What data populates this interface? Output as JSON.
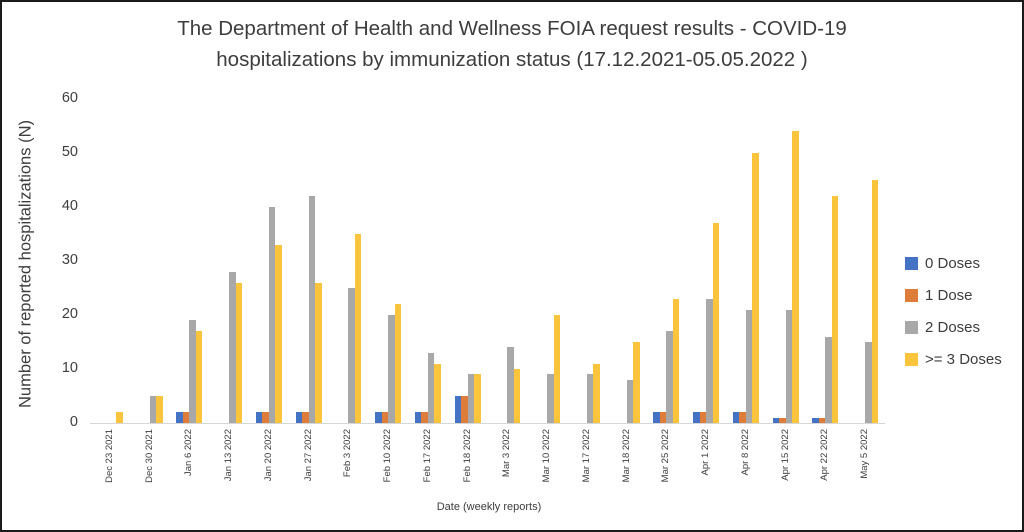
{
  "title": {
    "line1": "The Department of Health and Wellness FOIA request results - COVID-19",
    "line2": "hospitalizations by immunization status (17.12.2021-05.05.2022 )"
  },
  "y_axis": {
    "title": "Number of reported hospitalizations (N)",
    "ticks": [
      0,
      10,
      20,
      30,
      40,
      50,
      60
    ],
    "max": 60
  },
  "x_axis": {
    "title": "Date (weekly reports)"
  },
  "legend": [
    {
      "label": "0 Doses",
      "color": "#4472C4"
    },
    {
      "label": "1 Dose",
      "color": "#DE7C3A"
    },
    {
      "label": "2 Doses",
      "color": "#A8A8A8"
    },
    {
      "label": ">= 3 Doses",
      "color": "#FAC43D"
    }
  ],
  "chart_data": {
    "type": "bar",
    "title": "The Department of Health and Wellness FOIA request results - COVID-19 hospitalizations by immunization status (17.12.2021-05.05.2022 )",
    "xlabel": "Date (weekly reports)",
    "ylabel": "Number of reported hospitalizations (N)",
    "ylim": [
      0,
      60
    ],
    "grid": false,
    "legend_position": "right",
    "categories": [
      "Dec 23 2021",
      "Dec 30 2021",
      "Jan 6 2022",
      "Jan 13 2022",
      "Jan 20 2022",
      "Jan 27 2022",
      "Feb 3 2022",
      "Feb 10 2022",
      "Feb 17 2022",
      "Feb 18 2022",
      "Mar 3 2022",
      "Mar 10 2022",
      "Mar 17 2022",
      "Mar 18 2022",
      "Mar 25 2022",
      "Apr 1 2022",
      "Apr 8 2022",
      "Apr 15 2022",
      "Apr 22 2022",
      "May 5 2022"
    ],
    "series": [
      {
        "name": "0 Doses",
        "color": "#4472C4",
        "values": [
          0,
          0,
          2,
          0,
          2,
          2,
          0,
          2,
          2,
          5,
          0,
          0,
          0,
          0,
          2,
          2,
          2,
          1,
          1,
          0
        ]
      },
      {
        "name": "1 Dose",
        "color": "#DE7C3A",
        "values": [
          0,
          0,
          2,
          0,
          2,
          2,
          0,
          2,
          2,
          5,
          0,
          0,
          0,
          0,
          2,
          2,
          2,
          1,
          1,
          0
        ]
      },
      {
        "name": "2 Doses",
        "color": "#A8A8A8",
        "values": [
          0,
          5,
          19,
          28,
          40,
          42,
          25,
          20,
          13,
          9,
          14,
          9,
          9,
          8,
          17,
          23,
          21,
          21,
          16,
          15
        ]
      },
      {
        "name": ">= 3 Doses",
        "color": "#FAC43D",
        "values": [
          2,
          5,
          17,
          26,
          33,
          26,
          35,
          22,
          11,
          9,
          10,
          20,
          11,
          15,
          23,
          37,
          50,
          54,
          42,
          45
        ]
      }
    ]
  }
}
